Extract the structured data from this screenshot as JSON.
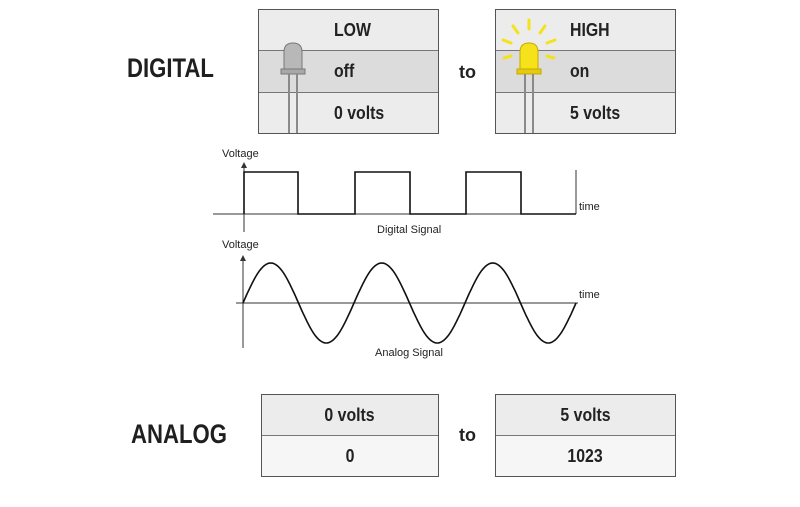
{
  "digital": {
    "label": "DIGITAL",
    "connector": "to",
    "low": {
      "state": "LOW",
      "status": "off",
      "voltage": "0 volts"
    },
    "high": {
      "state": "HIGH",
      "status": "on",
      "voltage": "5 volts"
    }
  },
  "digital_chart": {
    "ylabel": "Voltage",
    "xlabel": "time",
    "caption": "Digital Signal"
  },
  "analog_chart": {
    "ylabel": "Voltage",
    "xlabel": "time",
    "caption": "Analog Signal"
  },
  "analog": {
    "label": "ANALOG",
    "connector": "to",
    "left": {
      "voltage": "0 volts",
      "value": "0"
    },
    "right": {
      "voltage": "5 volts",
      "value": "1023"
    }
  },
  "colors": {
    "led_on": "#f5e21b",
    "led_off": "#b8b8b8",
    "rays": "#f5e21b"
  }
}
